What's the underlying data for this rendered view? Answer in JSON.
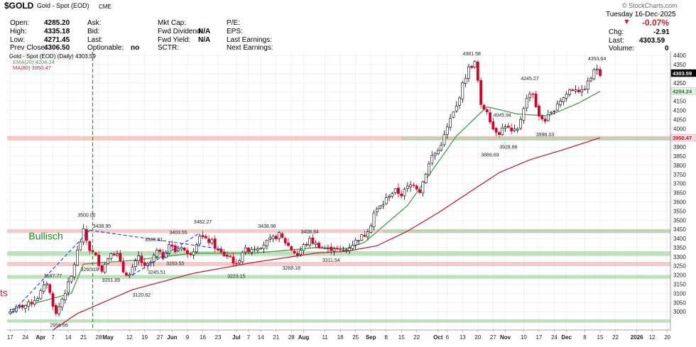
{
  "header": {
    "symbol": "$GOLD",
    "name": "Gold - Spot (EOD)",
    "exchange": "CME",
    "brand": "© StockCharts.com",
    "date": "Tuesday  16-Dec-2025",
    "change_pct": "-0.07%",
    "chg_label": "Chg:",
    "chg": "-2.91",
    "last_label": "Last:",
    "last": "4303.59",
    "vol_label": "Volume:",
    "volume": "0",
    "open_label": "Open:",
    "open": "4285.20",
    "high_label": "High:",
    "high": "4335.18",
    "low_label": "Low:",
    "low": "4271.45",
    "prev_label": "Prev Close:",
    "prev_close": "4306.50",
    "ask_label": "Ask:",
    "bid_label": "Bid:",
    "lastq_label": "Last:",
    "optionable_label": "Optionable:",
    "optionable": "no",
    "mktcap_label": "Mkt Cap:",
    "fwd_div_label": "Fwd Dividend:",
    "fwd_div": "N/A",
    "fwd_yield_label": "Fwd Yield:",
    "fwd_yield": "N/A",
    "sctr_label": "SCTR:",
    "pe_label": "P/E:",
    "eps_label": "EPS:",
    "last_earn_label": "Last Earnings:",
    "next_earn_label": "Next Earnings:"
  },
  "colors": {
    "up": "#000000",
    "down": "#d2002a",
    "ema": "#4c9a4c",
    "ma": "#b5283a",
    "zone_red": "#f3b3b3",
    "zone_green": "#a9d6a9",
    "trend": "#1f3fd6",
    "vline": "#2e8b2e"
  },
  "chart_data": {
    "type": "candlestick",
    "title": "Gold - Spot (EOD) (Daily) 4303.59",
    "legend": [
      {
        "name": "Gold - Spot (EOD) (Daily) 4303.59",
        "color": "#000000"
      },
      {
        "name": "EMA(20) 4204.24",
        "color": "#4c9a4c"
      },
      {
        "name": "MA(80) 3950.47",
        "color": "#b5283a"
      }
    ],
    "ylim": [
      2900,
      4420
    ],
    "y_ticks": [
      3000,
      3050,
      3100,
      3150,
      3200,
      3250,
      3300,
      3350,
      3400,
      3450,
      3500,
      3550,
      3600,
      3650,
      3700,
      3750,
      3800,
      3850,
      3900,
      3950,
      4000,
      4050,
      4100,
      4150,
      4200,
      4250,
      4300,
      4350,
      4400
    ],
    "x_ticks": [
      {
        "label": "17",
        "day": 0
      },
      {
        "label": "24",
        "day": 5
      },
      {
        "label": "Apr",
        "day": 10,
        "bold": true
      },
      {
        "label": "7",
        "day": 14
      },
      {
        "label": "14",
        "day": 19
      },
      {
        "label": "21",
        "day": 24
      },
      {
        "label": "28",
        "day": 29
      },
      {
        "label": "May",
        "day": 32,
        "bold": true
      },
      {
        "label": "12",
        "day": 39
      },
      {
        "label": "19",
        "day": 44
      },
      {
        "label": "27",
        "day": 49
      },
      {
        "label": "Jun",
        "day": 53,
        "bold": true
      },
      {
        "label": "9",
        "day": 58
      },
      {
        "label": "16",
        "day": 63
      },
      {
        "label": "23",
        "day": 68
      },
      {
        "label": "Jul",
        "day": 74,
        "bold": true
      },
      {
        "label": "7",
        "day": 78
      },
      {
        "label": "14",
        "day": 82
      },
      {
        "label": "21",
        "day": 87
      },
      {
        "label": "28",
        "day": 92
      },
      {
        "label": "Aug",
        "day": 96,
        "bold": true
      },
      {
        "label": "11",
        "day": 103
      },
      {
        "label": "18",
        "day": 108
      },
      {
        "label": "25",
        "day": 113
      },
      {
        "label": "Sep",
        "day": 118,
        "bold": true
      },
      {
        "label": "8",
        "day": 123
      },
      {
        "label": "15",
        "day": 128
      },
      {
        "label": "22",
        "day": 133
      },
      {
        "label": "Oct",
        "day": 140,
        "bold": true
      },
      {
        "label": "6",
        "day": 143
      },
      {
        "label": "13",
        "day": 148
      },
      {
        "label": "20",
        "day": 153
      },
      {
        "label": "27",
        "day": 158
      },
      {
        "label": "Nov",
        "day": 162,
        "bold": true
      },
      {
        "label": "10",
        "day": 168
      },
      {
        "label": "17",
        "day": 173
      },
      {
        "label": "24",
        "day": 178
      },
      {
        "label": "Dec",
        "day": 182,
        "bold": true
      },
      {
        "label": "8",
        "day": 188
      },
      {
        "label": "15",
        "day": 193
      },
      {
        "label": "22",
        "day": 198
      },
      {
        "label": "2026",
        "day": 205,
        "bold": true
      },
      {
        "label": "12",
        "day": 210
      },
      {
        "label": "20",
        "day": 215
      }
    ],
    "anchors": [
      [
        0,
        3000
      ],
      [
        3,
        3025
      ],
      [
        6,
        3040
      ],
      [
        9,
        3080
      ],
      [
        12,
        3160
      ],
      [
        14,
        3040
      ],
      [
        15,
        2985
      ],
      [
        17,
        3070
      ],
      [
        20,
        3190
      ],
      [
        22,
        3330
      ],
      [
        24,
        3440
      ],
      [
        26,
        3340
      ],
      [
        28,
        3300
      ],
      [
        30,
        3230
      ],
      [
        31,
        3260
      ],
      [
        33,
        3330
      ],
      [
        35,
        3310
      ],
      [
        37,
        3220
      ],
      [
        39,
        3200
      ],
      [
        42,
        3300
      ],
      [
        44,
        3240
      ],
      [
        46,
        3270
      ],
      [
        48,
        3330
      ],
      [
        50,
        3300
      ],
      [
        52,
        3370
      ],
      [
        54,
        3330
      ],
      [
        56,
        3360
      ],
      [
        58,
        3310
      ],
      [
        60,
        3340
      ],
      [
        62,
        3420
      ],
      [
        64,
        3390
      ],
      [
        66,
        3380
      ],
      [
        68,
        3330
      ],
      [
        70,
        3310
      ],
      [
        72,
        3300
      ],
      [
        74,
        3250
      ],
      [
        76,
        3330
      ],
      [
        78,
        3340
      ],
      [
        80,
        3350
      ],
      [
        82,
        3360
      ],
      [
        84,
        3380
      ],
      [
        86,
        3400
      ],
      [
        88,
        3420
      ],
      [
        90,
        3380
      ],
      [
        92,
        3340
      ],
      [
        94,
        3310
      ],
      [
        96,
        3360
      ],
      [
        98,
        3390
      ],
      [
        100,
        3370
      ],
      [
        102,
        3350
      ],
      [
        104,
        3340
      ],
      [
        106,
        3350
      ],
      [
        108,
        3330
      ],
      [
        110,
        3340
      ],
      [
        112,
        3370
      ],
      [
        114,
        3400
      ],
      [
        116,
        3420
      ],
      [
        118,
        3480
      ],
      [
        119,
        3540
      ],
      [
        122,
        3590
      ],
      [
        124,
        3640
      ],
      [
        126,
        3660
      ],
      [
        128,
        3640
      ],
      [
        130,
        3680
      ],
      [
        132,
        3700
      ],
      [
        134,
        3660
      ],
      [
        136,
        3760
      ],
      [
        138,
        3850
      ],
      [
        140,
        3880
      ],
      [
        142,
        3960
      ],
      [
        144,
        4050
      ],
      [
        146,
        4120
      ],
      [
        148,
        4240
      ],
      [
        150,
        4330
      ],
      [
        152,
        4360
      ],
      [
        153,
        4260
      ],
      [
        154,
        4120
      ],
      [
        156,
        4100
      ],
      [
        158,
        4000
      ],
      [
        160,
        3980
      ],
      [
        162,
        4020
      ],
      [
        164,
        3980
      ],
      [
        166,
        3990
      ],
      [
        168,
        4120
      ],
      [
        170,
        4200
      ],
      [
        171,
        4190
      ],
      [
        173,
        4060
      ],
      [
        175,
        4050
      ],
      [
        177,
        4080
      ],
      [
        179,
        4140
      ],
      [
        181,
        4170
      ],
      [
        183,
        4210
      ],
      [
        185,
        4220
      ],
      [
        187,
        4200
      ],
      [
        189,
        4250
      ],
      [
        191,
        4310
      ],
      [
        192,
        4330
      ],
      [
        193,
        4303.59
      ]
    ],
    "series": [
      {
        "name": "EMA(20)",
        "last": 4204.24,
        "points": [
          [
            0,
            3010
          ],
          [
            20,
            3100
          ],
          [
            24,
            3260
          ],
          [
            40,
            3280
          ],
          [
            60,
            3320
          ],
          [
            80,
            3320
          ],
          [
            100,
            3350
          ],
          [
            110,
            3345
          ],
          [
            116,
            3380
          ],
          [
            130,
            3580
          ],
          [
            146,
            3960
          ],
          [
            156,
            4120
          ],
          [
            166,
            4080
          ],
          [
            176,
            4070
          ],
          [
            186,
            4140
          ],
          [
            193,
            4204.24
          ]
        ]
      },
      {
        "name": "MA(80)",
        "last": 3950.47,
        "points": [
          [
            14,
            2900
          ],
          [
            22,
            2990
          ],
          [
            40,
            3120
          ],
          [
            60,
            3210
          ],
          [
            80,
            3270
          ],
          [
            100,
            3320
          ],
          [
            110,
            3330
          ],
          [
            120,
            3360
          ],
          [
            130,
            3440
          ],
          [
            140,
            3540
          ],
          [
            150,
            3650
          ],
          [
            160,
            3760
          ],
          [
            170,
            3830
          ],
          [
            180,
            3880
          ],
          [
            193,
            3950.47
          ]
        ]
      }
    ],
    "zones": [
      {
        "low": 3935,
        "high": 3960,
        "color": "zone_red"
      },
      {
        "low": 3938,
        "high": 3955,
        "color": "zone_green",
        "from_day": 128
      },
      {
        "low": 3430,
        "high": 3450,
        "color": "zone_red"
      },
      {
        "low": 3430,
        "high": 3448,
        "color": "zone_green",
        "from_day": 122
      },
      {
        "low": 3305,
        "high": 3330,
        "color": "zone_green"
      },
      {
        "low": 3250,
        "high": 3272,
        "color": "zone_red"
      },
      {
        "low": 3180,
        "high": 3200,
        "color": "zone_green"
      },
      {
        "low": 2940,
        "high": 2958,
        "color": "zone_green"
      }
    ],
    "price_annotations": [
      {
        "text": "4381.58",
        "day": 151,
        "value": 4381.58,
        "pos": "above"
      },
      {
        "text": "4353.64",
        "day": 192,
        "value": 4353.64,
        "pos": "above"
      },
      {
        "text": "4245.27",
        "day": 170,
        "value": 4245.27,
        "pos": "above"
      },
      {
        "text": "4045.94",
        "day": 161,
        "value": 4045.94,
        "pos": "above"
      },
      {
        "text": "3928.86",
        "day": 163,
        "value": 3928.86,
        "pos": "below"
      },
      {
        "text": "3886.69",
        "day": 157,
        "value": 3886.69,
        "pos": "below"
      },
      {
        "text": "3998.03",
        "day": 175,
        "value": 3998.03,
        "pos": "below"
      },
      {
        "text": "3500.00",
        "day": 25,
        "value": 3500.0,
        "pos": "above"
      },
      {
        "text": "3438.95",
        "day": 30,
        "value": 3438.95,
        "pos": "above"
      },
      {
        "text": "3365.61",
        "day": 47,
        "value": 3365.61,
        "pos": "above"
      },
      {
        "text": "3403.55",
        "day": 55,
        "value": 3403.55,
        "pos": "above"
      },
      {
        "text": "3462.27",
        "day": 63,
        "value": 3462.27,
        "pos": "above"
      },
      {
        "text": "3438.96",
        "day": 84,
        "value": 3438.96,
        "pos": "above"
      },
      {
        "text": "3408.84",
        "day": 98,
        "value": 3408.84,
        "pos": "above"
      },
      {
        "text": "3260.19",
        "day": 26,
        "value": 3260.19,
        "pos": "below"
      },
      {
        "text": "3201.89",
        "day": 33,
        "value": 3201.89,
        "pos": "below"
      },
      {
        "text": "3293.55",
        "day": 54,
        "value": 3293.55,
        "pos": "below"
      },
      {
        "text": "3245.51",
        "day": 48,
        "value": 3245.51,
        "pos": "below"
      },
      {
        "text": "3120.62",
        "day": 43,
        "value": 3120.62,
        "pos": "below"
      },
      {
        "text": "3223.15",
        "day": 74,
        "value": 3223.15,
        "pos": "below"
      },
      {
        "text": "3268.18",
        "day": 92,
        "value": 3268.18,
        "pos": "below"
      },
      {
        "text": "3311.54",
        "day": 105,
        "value": 3311.54,
        "pos": "below"
      },
      {
        "text": "3167.77",
        "day": 14,
        "value": 3167.77,
        "pos": "above"
      },
      {
        "text": "2956.66",
        "day": 16,
        "value": 2956.66,
        "pos": "below"
      }
    ],
    "trendlines": [
      {
        "from": [
          0,
          2985
        ],
        "to": [
          26,
          3445
        ]
      },
      {
        "from": [
          26,
          3445
        ],
        "to": [
          70,
          3340
        ]
      },
      {
        "from": [
          40,
          3200
        ],
        "to": [
          62,
          3430
        ]
      }
    ],
    "vline_day": 27,
    "text_labels": [
      {
        "text": "Bullisch",
        "day": 14,
        "value": 3395,
        "color": "#1a8a1a"
      },
      {
        "text": "ts",
        "day": -2,
        "value": 3085,
        "color": "#b5283a"
      }
    ],
    "right_tags": [
      {
        "text": "4303.59",
        "value": 4303.59,
        "bg": "#000000",
        "fg": "#ffffff"
      },
      {
        "text": "4204.24",
        "value": 4204.24,
        "bg": "#e4f2e4",
        "fg": "#2b6b2b"
      },
      {
        "text": "3950.47",
        "value": 3950.47,
        "bg": "#f7dada",
        "fg": "#9a1f2d"
      }
    ]
  }
}
